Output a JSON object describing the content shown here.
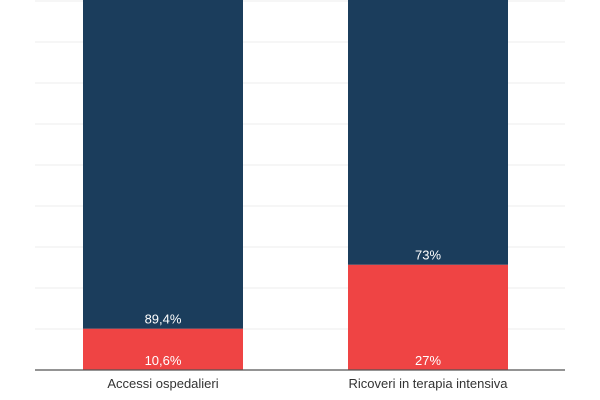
{
  "chart_data": {
    "type": "bar",
    "stacked": true,
    "percent": true,
    "categories": [
      "Accessi ospedalieri",
      "Ricoveri in terapia intensiva"
    ],
    "series": [
      {
        "values": [
          10.6,
          27
        ],
        "labels": [
          "10,6%",
          "27%"
        ],
        "color": "#ef4444"
      },
      {
        "values": [
          89.4,
          73
        ],
        "labels": [
          "89,4%",
          "73%"
        ],
        "color": "#1b3d5c"
      }
    ],
    "ylim": [
      0,
      100
    ],
    "grid": true,
    "legend": "none",
    "title": "",
    "xlabel": "",
    "ylabel": ""
  }
}
